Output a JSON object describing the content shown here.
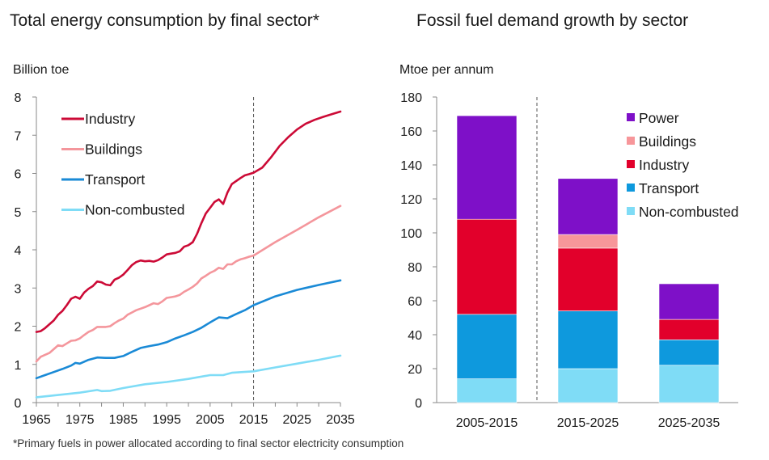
{
  "footnote": "*Primary fuels in power allocated according to final sector electricity consumption",
  "colors": {
    "industry": "#cc0a36",
    "buildings": "#f4969c",
    "transport": "#1a8ad6",
    "non_combusted": "#7fdcf6",
    "power": "#7e10c8",
    "bar_industry": "#e2002b",
    "bar_transport": "#0e99dd",
    "bar_non_combusted": "#7fdcf6",
    "bar_buildings": "#f7969a"
  },
  "chart_data": [
    {
      "type": "line",
      "title": "Total energy consumption by final sector*",
      "ylabel": "Billion toe",
      "xlabel": "",
      "xlim": [
        1965,
        2035
      ],
      "ylim": [
        0,
        8
      ],
      "xticks": [
        "1965",
        "1975",
        "1985",
        "1995",
        "2005",
        "2015",
        "2025",
        "2035"
      ],
      "yticks": [
        "0",
        "1",
        "2",
        "3",
        "4",
        "5",
        "6",
        "7",
        "8"
      ],
      "projection_start": 2015,
      "legend_position": "top-left",
      "series": [
        {
          "name": "Industry",
          "key": "industry",
          "x": [
            1965,
            1966,
            1967,
            1968,
            1969,
            1970,
            1971,
            1972,
            1973,
            1974,
            1975,
            1976,
            1977,
            1978,
            1979,
            1980,
            1981,
            1982,
            1983,
            1984,
            1985,
            1986,
            1987,
            1988,
            1989,
            1990,
            1991,
            1992,
            1993,
            1994,
            1995,
            1996,
            1997,
            1998,
            1999,
            2000,
            2001,
            2002,
            2003,
            2004,
            2005,
            2006,
            2007,
            2008,
            2009,
            2010,
            2011,
            2012,
            2013,
            2014,
            2015,
            2017,
            2019,
            2021,
            2023,
            2025,
            2027,
            2029,
            2031,
            2033,
            2035
          ],
          "values": [
            1.85,
            1.87,
            1.95,
            2.05,
            2.15,
            2.3,
            2.4,
            2.55,
            2.72,
            2.77,
            2.72,
            2.88,
            2.98,
            3.05,
            3.17,
            3.15,
            3.09,
            3.07,
            3.22,
            3.27,
            3.35,
            3.47,
            3.6,
            3.68,
            3.72,
            3.7,
            3.71,
            3.69,
            3.73,
            3.8,
            3.88,
            3.9,
            3.92,
            3.96,
            4.08,
            4.12,
            4.2,
            4.42,
            4.7,
            4.95,
            5.1,
            5.25,
            5.32,
            5.2,
            5.5,
            5.72,
            5.8,
            5.88,
            5.95,
            5.98,
            6.02,
            6.15,
            6.42,
            6.72,
            6.95,
            7.15,
            7.3,
            7.4,
            7.48,
            7.55,
            7.62
          ]
        },
        {
          "name": "Buildings",
          "key": "buildings",
          "x": [
            1965,
            1966,
            1967,
            1968,
            1969,
            1970,
            1971,
            1972,
            1973,
            1974,
            1975,
            1976,
            1977,
            1978,
            1979,
            1980,
            1981,
            1982,
            1983,
            1984,
            1985,
            1986,
            1987,
            1988,
            1989,
            1990,
            1991,
            1992,
            1993,
            1994,
            1995,
            1996,
            1997,
            1998,
            1999,
            2000,
            2001,
            2002,
            2003,
            2004,
            2005,
            2006,
            2007,
            2008,
            2009,
            2010,
            2011,
            2012,
            2013,
            2014,
            2015,
            2020,
            2025,
            2030,
            2035
          ],
          "values": [
            1.08,
            1.2,
            1.25,
            1.3,
            1.4,
            1.5,
            1.48,
            1.55,
            1.62,
            1.63,
            1.68,
            1.77,
            1.85,
            1.9,
            1.98,
            1.98,
            1.98,
            2.0,
            2.08,
            2.15,
            2.2,
            2.3,
            2.36,
            2.42,
            2.46,
            2.5,
            2.55,
            2.6,
            2.58,
            2.65,
            2.74,
            2.76,
            2.78,
            2.82,
            2.9,
            2.96,
            3.03,
            3.12,
            3.25,
            3.32,
            3.4,
            3.45,
            3.53,
            3.5,
            3.62,
            3.62,
            3.7,
            3.75,
            3.78,
            3.82,
            3.85,
            4.2,
            4.52,
            4.85,
            5.15
          ]
        },
        {
          "name": "Transport",
          "key": "transport",
          "x": [
            1965,
            1967,
            1969,
            1971,
            1973,
            1974,
            1975,
            1977,
            1979,
            1981,
            1983,
            1985,
            1987,
            1989,
            1991,
            1993,
            1995,
            1997,
            1999,
            2001,
            2003,
            2005,
            2007,
            2008,
            2009,
            2011,
            2013,
            2015,
            2020,
            2025,
            2030,
            2035
          ],
          "values": [
            0.64,
            0.72,
            0.8,
            0.88,
            0.97,
            1.04,
            1.02,
            1.12,
            1.18,
            1.17,
            1.17,
            1.22,
            1.33,
            1.43,
            1.48,
            1.52,
            1.58,
            1.68,
            1.76,
            1.85,
            1.96,
            2.1,
            2.23,
            2.22,
            2.21,
            2.32,
            2.42,
            2.55,
            2.78,
            2.95,
            3.08,
            3.2
          ]
        },
        {
          "name": "Non-combusted",
          "key": "non_combusted",
          "x": [
            1965,
            1970,
            1975,
            1979,
            1980,
            1982,
            1985,
            1990,
            1995,
            2000,
            2005,
            2008,
            2010,
            2015,
            2020,
            2025,
            2030,
            2035
          ],
          "values": [
            0.14,
            0.2,
            0.26,
            0.33,
            0.3,
            0.31,
            0.38,
            0.48,
            0.54,
            0.62,
            0.72,
            0.72,
            0.78,
            0.82,
            0.92,
            1.02,
            1.12,
            1.23
          ]
        }
      ]
    },
    {
      "type": "bar",
      "stacked": true,
      "title": "Fossil fuel demand growth by sector",
      "ylabel": "Mtoe per annum",
      "xlabel": "",
      "categories": [
        "2005-2015",
        "2015-2025",
        "2025-2035"
      ],
      "ylim": [
        0,
        180
      ],
      "yticks": [
        "0",
        "20",
        "40",
        "60",
        "80",
        "100",
        "120",
        "140",
        "160",
        "180"
      ],
      "legend_position": "top-right",
      "legend_order": [
        "Power",
        "Buildings",
        "Industry",
        "Transport",
        "Non-combusted"
      ],
      "series": [
        {
          "name": "Non-combusted",
          "key": "bar_non_combusted",
          "values": [
            14,
            20,
            22
          ]
        },
        {
          "name": "Transport",
          "key": "bar_transport",
          "values": [
            38,
            34,
            15
          ]
        },
        {
          "name": "Industry",
          "key": "bar_industry",
          "values": [
            56,
            37,
            12
          ]
        },
        {
          "name": "Buildings",
          "key": "bar_buildings",
          "values": [
            0,
            8,
            0
          ]
        },
        {
          "name": "Power",
          "key": "power",
          "values": [
            61,
            33,
            21
          ]
        }
      ]
    }
  ]
}
